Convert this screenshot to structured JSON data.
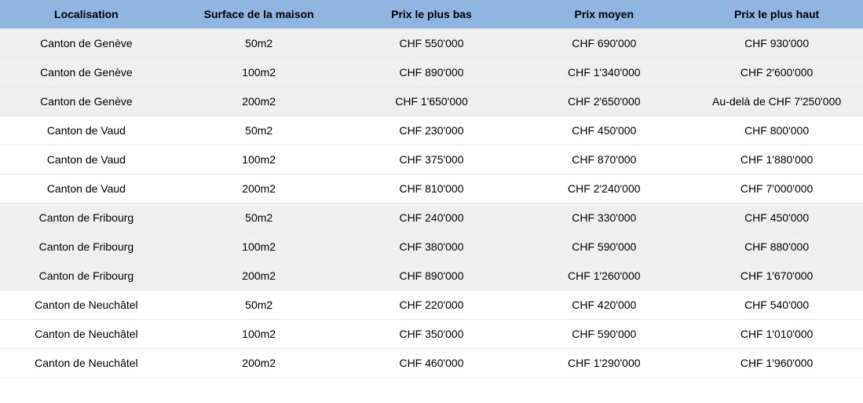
{
  "table": {
    "type": "table",
    "header_bg": "#8fb5e0",
    "header_color": "#000000",
    "stripe_a_bg": "#efefef",
    "stripe_b_bg": "#ffffff",
    "border_color": "#e9e9e9",
    "font_family": "Arial",
    "header_fontsize": 14,
    "cell_fontsize": 14,
    "columns": [
      {
        "key": "loc",
        "label": "Localisation",
        "align": "center"
      },
      {
        "key": "surf",
        "label": "Surface de la maison",
        "align": "center"
      },
      {
        "key": "low",
        "label": "Prix le plus bas",
        "align": "center"
      },
      {
        "key": "avg",
        "label": "Prix moyen",
        "align": "center"
      },
      {
        "key": "high",
        "label": "Prix le plus haut",
        "align": "center"
      }
    ],
    "group_size": 3,
    "rows": [
      {
        "loc": "Canton de Genève",
        "surf": "50m2",
        "low": "CHF 550'000",
        "avg": "CHF 690'000",
        "high": "CHF 930'000"
      },
      {
        "loc": "Canton de Genève",
        "surf": "100m2",
        "low": "CHF 890'000",
        "avg": "CHF 1'340'000",
        "high": "CHF 2'600'000"
      },
      {
        "loc": "Canton de Genève",
        "surf": "200m2",
        "low": "CHF 1'650'000",
        "avg": "CHF 2'650'000",
        "high": "Au-delà de CHF 7'250'000"
      },
      {
        "loc": "Canton de Vaud",
        "surf": "50m2",
        "low": "CHF 230'000",
        "avg": "CHF 450'000",
        "high": "CHF 800'000"
      },
      {
        "loc": "Canton de Vaud",
        "surf": "100m2",
        "low": "CHF 375'000",
        "avg": "CHF 870'000",
        "high": "CHF 1'880'000"
      },
      {
        "loc": "Canton de Vaud",
        "surf": "200m2",
        "low": "CHF 810'000",
        "avg": "CHF 2'240'000",
        "high": "CHF 7'000'000"
      },
      {
        "loc": "Canton de Fribourg",
        "surf": "50m2",
        "low": "CHF 240'000",
        "avg": "CHF 330'000",
        "high": "CHF 450'000"
      },
      {
        "loc": "Canton de Fribourg",
        "surf": "100m2",
        "low": "CHF 380'000",
        "avg": "CHF 590'000",
        "high": "CHF 880'000"
      },
      {
        "loc": "Canton de Fribourg",
        "surf": "200m2",
        "low": "CHF 890'000",
        "avg": "CHF 1'260'000",
        "high": "CHF 1'670'000"
      },
      {
        "loc": "Canton de Neuchâtel",
        "surf": "50m2",
        "low": "CHF 220'000",
        "avg": "CHF 420'000",
        "high": "CHF 540'000"
      },
      {
        "loc": "Canton de Neuchâtel",
        "surf": "100m2",
        "low": "CHF 350'000",
        "avg": "CHF 590'000",
        "high": "CHF 1'010'000"
      },
      {
        "loc": "Canton de Neuchâtel",
        "surf": "200m2",
        "low": "CHF 460'000",
        "avg": "CHF 1'290'000",
        "high": "CHF 1'960'000"
      }
    ]
  }
}
